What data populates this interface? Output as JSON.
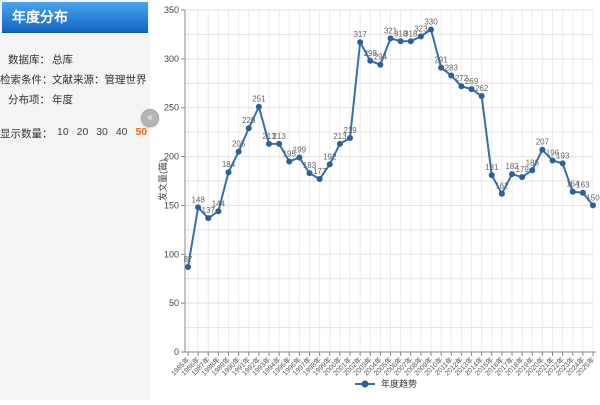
{
  "sidebar": {
    "title": "年度分布",
    "fields": [
      {
        "label": "数据库：",
        "value": "总库"
      },
      {
        "label": "检索条件：",
        "value": "文献来源：管理世界"
      },
      {
        "label": "分布项：",
        "value": "年度"
      }
    ],
    "display_count": {
      "label": "显示数量：",
      "options": [
        "10",
        "20",
        "30",
        "40",
        "50"
      ],
      "selected": "50",
      "selected_color": "#ff6600"
    },
    "collapse_icon": "«"
  },
  "chart_data": {
    "type": "line",
    "title": "",
    "xlabel": "",
    "ylabel": "发文量(篇)",
    "ylim": [
      0,
      350
    ],
    "y_tick_step": 50,
    "y_minor_step": 25,
    "grid": true,
    "legend": {
      "label": "年度趋势",
      "position": "bottom"
    },
    "line_color": "#3a6ea8",
    "point_color": "#2d5f9a",
    "label_color": "#666666",
    "categories": [
      "1985年",
      "1986年",
      "1987年",
      "1988年",
      "1989年",
      "1990年",
      "1991年",
      "1992年",
      "1993年",
      "1994年",
      "1995年",
      "1996年",
      "1997年",
      "1998年",
      "1999年",
      "2000年",
      "2001年",
      "2002年",
      "2003年",
      "2004年",
      "2005年",
      "2006年",
      "2007年",
      "2008年",
      "2009年",
      "2010年",
      "2011年",
      "2012年",
      "2013年",
      "2014年",
      "2015年",
      "2016年",
      "2017年",
      "2018年",
      "2019年",
      "2020年",
      "2021年",
      "2022年",
      "2023年",
      "2024年",
      "2025年"
    ],
    "values": [
      87,
      148,
      137,
      144,
      184,
      205,
      229,
      251,
      213,
      213,
      195,
      199,
      183,
      177,
      192,
      213,
      219,
      317,
      298,
      294,
      321,
      318,
      318,
      323,
      330,
      291,
      283,
      272,
      269,
      262,
      181,
      162,
      182,
      179,
      186,
      207,
      196,
      193,
      164,
      163,
      150
    ]
  }
}
